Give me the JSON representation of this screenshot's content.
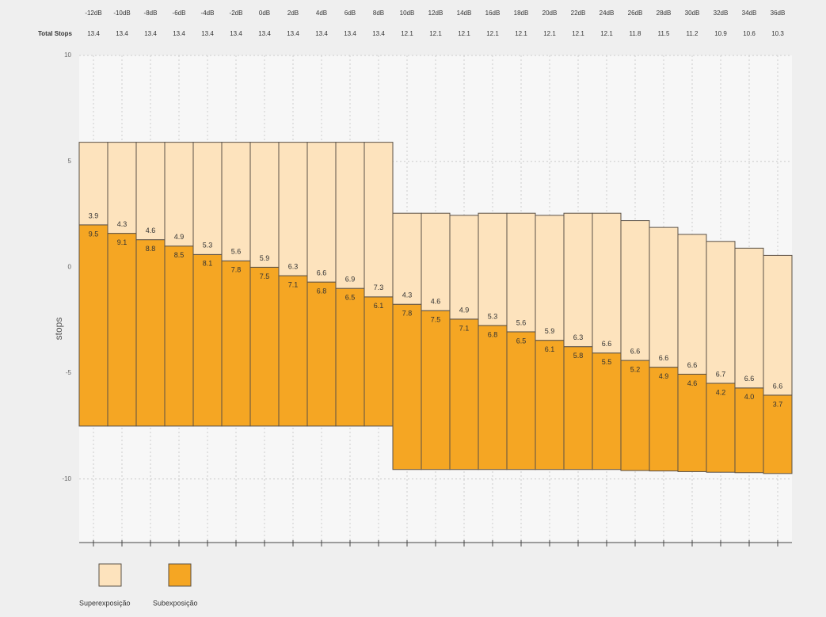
{
  "chart_data": {
    "type": "bar",
    "categories": [
      "-12dB",
      "-10dB",
      "-8dB",
      "-6dB",
      "-4dB",
      "-2dB",
      "0dB",
      "2dB",
      "4dB",
      "6dB",
      "8dB",
      "10dB",
      "12dB",
      "14dB",
      "16dB",
      "18dB",
      "20dB",
      "22dB",
      "24dB",
      "26dB",
      "28dB",
      "30dB",
      "32dB",
      "34dB",
      "36dB"
    ],
    "total_stops_label": "Total Stops",
    "total_stops": [
      13.4,
      13.4,
      13.4,
      13.4,
      13.4,
      13.4,
      13.4,
      13.4,
      13.4,
      13.4,
      13.4,
      12.1,
      12.1,
      12.1,
      12.1,
      12.1,
      12.1,
      12.1,
      12.1,
      11.8,
      11.5,
      11.2,
      10.9,
      10.6,
      10.3
    ],
    "ylabel": "stops",
    "ylim": [
      -13,
      10
    ],
    "yticks": [
      -10,
      -5,
      0,
      5,
      10
    ],
    "grid": true,
    "base": [
      -7.5,
      -7.5,
      -7.5,
      -7.5,
      -7.5,
      -7.5,
      -7.5,
      -7.5,
      -7.5,
      -7.5,
      -7.5,
      -9.55,
      -9.55,
      -9.55,
      -9.55,
      -9.55,
      -9.55,
      -9.55,
      -9.55,
      -9.6,
      -9.62,
      -9.65,
      -9.68,
      -9.7,
      -9.74
    ],
    "series": [
      {
        "name": "Superexposição",
        "color": "#fde3bd",
        "values": [
          3.9,
          4.3,
          4.6,
          4.9,
          5.3,
          5.6,
          5.9,
          6.3,
          6.6,
          6.9,
          7.3,
          4.3,
          4.6,
          4.9,
          5.3,
          5.6,
          5.9,
          6.3,
          6.6,
          6.6,
          6.6,
          6.6,
          6.7,
          6.6,
          6.6
        ]
      },
      {
        "name": "Subexposição",
        "color": "#f5a623",
        "values": [
          9.5,
          9.1,
          8.8,
          8.5,
          8.1,
          7.8,
          7.5,
          7.1,
          6.8,
          6.5,
          6.1,
          7.8,
          7.5,
          7.1,
          6.8,
          6.5,
          6.1,
          5.8,
          5.5,
          5.2,
          4.9,
          4.6,
          4.2,
          4.0,
          3.7
        ],
        "value_labels": [
          "9.5",
          "9.1",
          "8.8",
          "8.5",
          "8.1",
          "7.8",
          "7.5",
          "7.1",
          "6.8",
          "6.5",
          "6.1",
          "7.8",
          "7.5",
          "7.1",
          "6.8",
          "6.5",
          "6.1",
          "5.8",
          "5.5",
          "5.2",
          "4.9",
          "4.6",
          "4.2",
          "4.0",
          "3.7"
        ]
      }
    ]
  }
}
